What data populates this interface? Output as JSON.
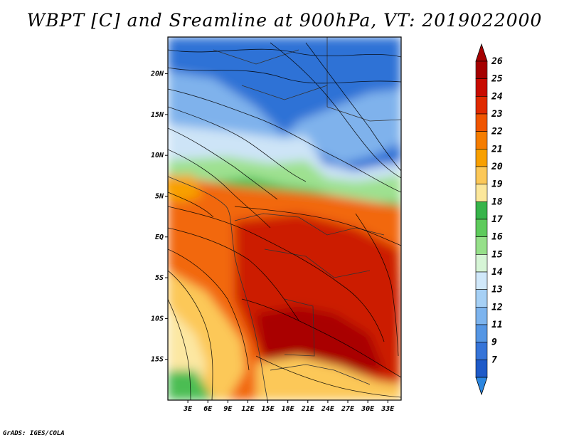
{
  "title": "WBPT [C] and Sreamline at 900hPa, VT: 2019022000",
  "credit": "GrADS: IGES/COLA",
  "map": {
    "lon_min": 0,
    "lon_max": 35,
    "lat_min": -20,
    "lat_max": 24.5,
    "lat_ticks": [
      {
        "value": 20,
        "label": "20N"
      },
      {
        "value": 15,
        "label": "15N"
      },
      {
        "value": 10,
        "label": "10N"
      },
      {
        "value": 5,
        "label": "5N"
      },
      {
        "value": 0,
        "label": "EQ"
      },
      {
        "value": -5,
        "label": "5S"
      },
      {
        "value": -10,
        "label": "10S"
      },
      {
        "value": -15,
        "label": "15S"
      }
    ],
    "lon_ticks": [
      {
        "value": 3,
        "label": "3E"
      },
      {
        "value": 6,
        "label": "6E"
      },
      {
        "value": 9,
        "label": "9E"
      },
      {
        "value": 12,
        "label": "12E"
      },
      {
        "value": 15,
        "label": "15E"
      },
      {
        "value": 18,
        "label": "18E"
      },
      {
        "value": 21,
        "label": "21E"
      },
      {
        "value": 24,
        "label": "24E"
      },
      {
        "value": 27,
        "label": "27E"
      },
      {
        "value": 30,
        "label": "30E"
      },
      {
        "value": 33,
        "label": "33E"
      }
    ]
  },
  "colorbar": {
    "labels": [
      "26",
      "25",
      "24",
      "23",
      "22",
      "21",
      "20",
      "19",
      "18",
      "17",
      "16",
      "15",
      "14",
      "13",
      "12",
      "11",
      "9",
      "7"
    ],
    "colors": [
      "#a50000",
      "#c80a00",
      "#e02a00",
      "#f05500",
      "#f57d00",
      "#f8a000",
      "#fcc858",
      "#fce79b",
      "#37b44a",
      "#5ecb5c",
      "#96e08a",
      "#d6f5d6",
      "#d0e8fa",
      "#a6d0f5",
      "#7db4ee",
      "#5596e4",
      "#3674d8",
      "#1e5ac8"
    ]
  }
}
